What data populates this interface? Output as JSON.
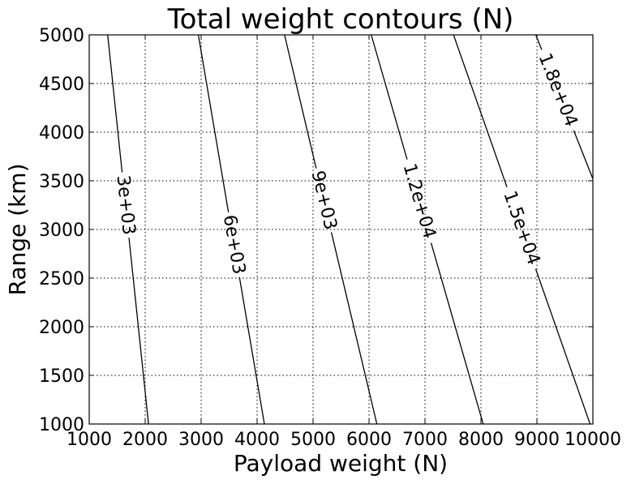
{
  "chart_data": {
    "type": "contour",
    "title": "Total weight contours (N)",
    "xlabel": "Payload weight (N)",
    "ylabel": "Range (km)",
    "xlim": [
      1000,
      10000
    ],
    "ylim": [
      1000,
      5000
    ],
    "xticks": [
      1000,
      2000,
      3000,
      4000,
      5000,
      6000,
      7000,
      8000,
      9000,
      10000
    ],
    "xtick_labels": [
      "1000",
      "2000",
      "3000",
      "4000",
      "5000",
      "6000",
      "7000",
      "8000",
      "9000",
      "10000"
    ],
    "yticks": [
      1000,
      1500,
      2000,
      2500,
      3000,
      3500,
      4000,
      4500,
      5000
    ],
    "ytick_labels": [
      "1000",
      "1500",
      "2000",
      "2500",
      "3000",
      "3500",
      "4000",
      "4500",
      "5000"
    ],
    "grid": true,
    "contours": [
      {
        "level": 3000,
        "label": "3e+03",
        "label_at": {
          "x": 1650,
          "y": 3250
        },
        "points": [
          {
            "x": 1330,
            "y": 5000
          },
          {
            "x": 2060,
            "y": 1000
          }
        ]
      },
      {
        "level": 6000,
        "label": "6e+03",
        "label_at": {
          "x": 3650,
          "y": 2850
        },
        "points": [
          {
            "x": 2950,
            "y": 5000
          },
          {
            "x": 4130,
            "y": 1000
          }
        ]
      },
      {
        "level": 9000,
        "label": "9e+03",
        "label_at": {
          "x": 5200,
          "y": 3300
        },
        "points": [
          {
            "x": 4490,
            "y": 5000
          },
          {
            "x": 6140,
            "y": 1000
          }
        ]
      },
      {
        "level": 12000,
        "label": "1.2e+04",
        "label_at": {
          "x": 6950,
          "y": 3300
        },
        "points": [
          {
            "x": 6040,
            "y": 5000
          },
          {
            "x": 8040,
            "y": 1000
          }
        ]
      },
      {
        "level": 15000,
        "label": "1.5e+04",
        "label_at": {
          "x": 8650,
          "y": 3000
        },
        "points": [
          {
            "x": 7510,
            "y": 5000
          },
          {
            "x": 9950,
            "y": 1000
          }
        ]
      },
      {
        "level": 18000,
        "label": "1.8e+04",
        "label_at": {
          "x": 9450,
          "y": 4450
        },
        "points": [
          {
            "x": 8980,
            "y": 5000
          },
          {
            "x": 10000,
            "y": 3520
          }
        ]
      }
    ]
  }
}
